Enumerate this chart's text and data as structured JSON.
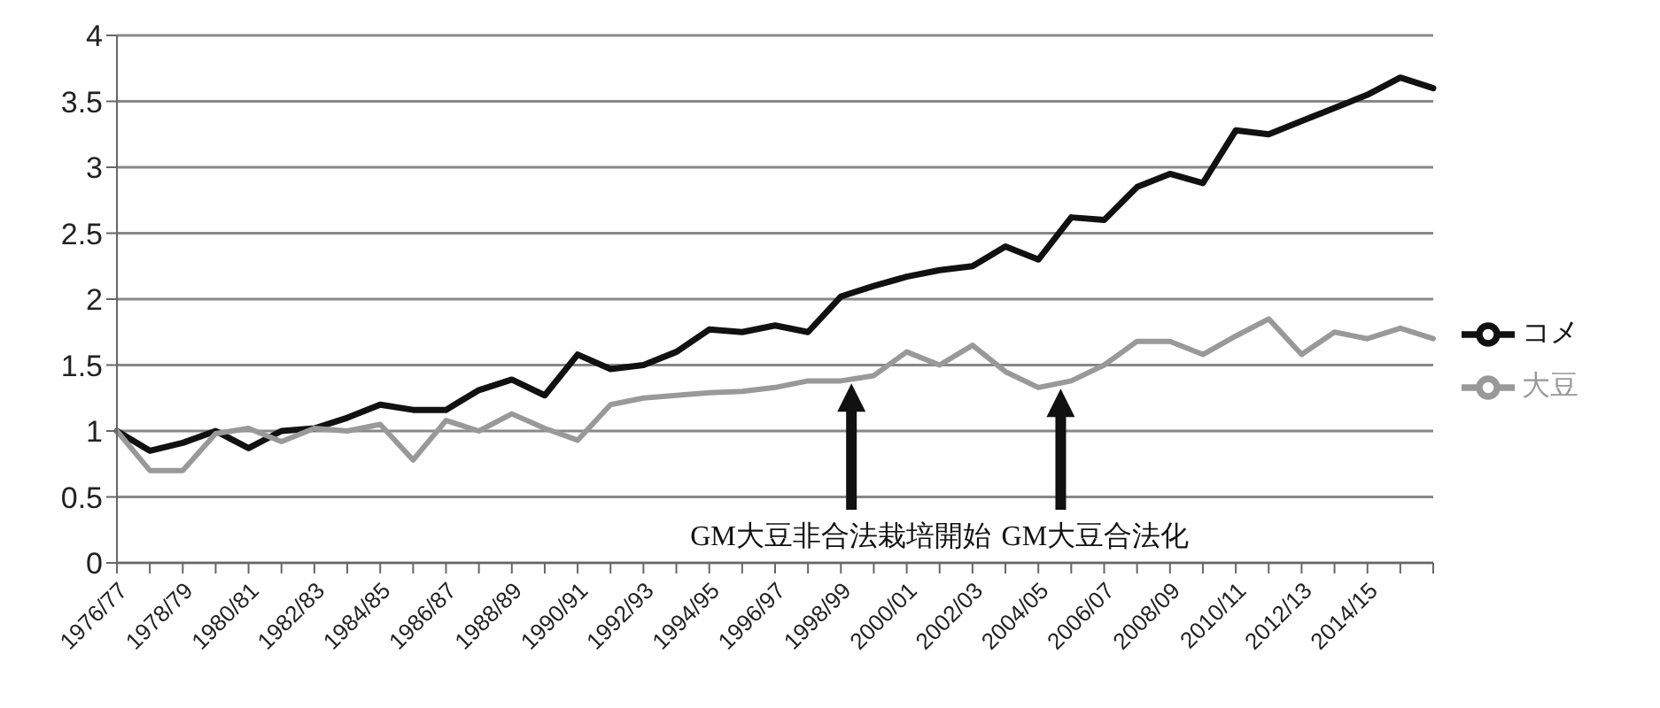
{
  "chart_data": {
    "type": "line",
    "categories": [
      "1976/77",
      null,
      "1978/79",
      null,
      "1980/81",
      null,
      "1982/83",
      null,
      "1984/85",
      null,
      "1986/87",
      null,
      "1988/89",
      null,
      "1990/91",
      null,
      "1992/93",
      null,
      "1994/95",
      null,
      "1996/97",
      null,
      "1998/99",
      null,
      "2000/01",
      null,
      "2002/03",
      null,
      "2004/05",
      null,
      "2006/07",
      null,
      "2008/09",
      null,
      "2010/11",
      null,
      "2012/13",
      null,
      "2014/15",
      null,
      null
    ],
    "series": [
      {
        "name": "コメ",
        "color": "#111111",
        "values": [
          1.0,
          0.85,
          0.91,
          1.0,
          0.87,
          1.0,
          1.02,
          1.1,
          1.2,
          1.16,
          1.16,
          1.31,
          1.39,
          1.27,
          1.58,
          1.47,
          1.5,
          1.6,
          1.77,
          1.75,
          1.8,
          1.75,
          2.02,
          2.1,
          2.17,
          2.22,
          2.25,
          2.4,
          2.3,
          2.62,
          2.6,
          2.85,
          2.95,
          2.88,
          3.28,
          3.25,
          3.35,
          3.45,
          3.55,
          3.68,
          3.6
        ]
      },
      {
        "name": "大豆",
        "color": "#999999",
        "values": [
          1.0,
          0.7,
          0.7,
          0.98,
          1.02,
          0.92,
          1.02,
          1.0,
          1.05,
          0.78,
          1.08,
          1.0,
          1.13,
          1.02,
          0.93,
          1.2,
          1.25,
          1.27,
          1.29,
          1.3,
          1.33,
          1.38,
          1.38,
          1.42,
          1.6,
          1.5,
          1.65,
          1.45,
          1.33,
          1.38,
          1.5,
          1.68,
          1.68,
          1.58,
          1.72,
          1.85,
          1.58,
          1.75,
          1.7,
          1.78,
          1.7
        ]
      }
    ],
    "annotations": [
      "GM大豆非合法栽培開始",
      "GM大豆合法化"
    ],
    "ylim": [
      0,
      4
    ],
    "yticks": [
      0,
      0.5,
      1,
      1.5,
      2,
      2.5,
      3,
      3.5,
      4
    ],
    "grid": "y",
    "legend": "right"
  }
}
